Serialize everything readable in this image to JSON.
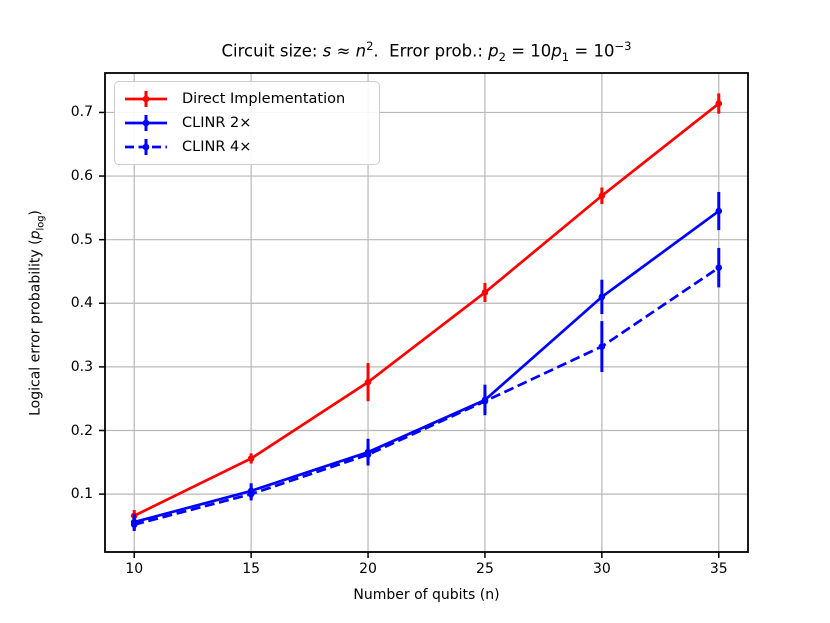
{
  "figure": {
    "title_parts": [
      "Circuit size: ",
      "s",
      " ≈ ",
      "n",
      "2",
      ".  Error prob.: ",
      "p",
      "2",
      " = 10",
      "p",
      "1",
      " = 10",
      "−3"
    ],
    "ylabel_parts": {
      "pre": "Logical error probability (",
      "p": "p",
      "sub": "log",
      "post": ")"
    }
  },
  "chart_data": {
    "type": "line",
    "title": "Circuit size: s ≈ n².  Error prob.: p₂ = 10p₁ = 10⁻³",
    "xlabel": "Number of qubits (n)",
    "ylabel": "Logical error probability (p_log)",
    "x": [
      10,
      15,
      20,
      25,
      30,
      35
    ],
    "xticks": [
      10,
      15,
      20,
      25,
      30,
      35
    ],
    "xtick_labels": [
      "10",
      "15",
      "20",
      "25",
      "30",
      "35"
    ],
    "yticks": [
      0.1,
      0.2,
      0.3,
      0.4,
      0.5,
      0.6,
      0.7
    ],
    "ytick_labels": [
      "0.1",
      "0.2",
      "0.3",
      "0.4",
      "0.5",
      "0.6",
      "0.7"
    ],
    "xlim": [
      8.75,
      36.25
    ],
    "ylim": [
      0.009,
      0.762
    ],
    "grid": true,
    "legend_position": "upper left",
    "grid_color": "#b8b8b8",
    "series": [
      {
        "name": "Direct Implementation",
        "color": "#ff0000",
        "style": "solid",
        "values": [
          0.066,
          0.156,
          0.276,
          0.417,
          0.569,
          0.714
        ],
        "yerr": [
          0.009,
          0.008,
          0.03,
          0.015,
          0.013,
          0.016
        ]
      },
      {
        "name": "CLINR 2×",
        "color": "#0000ff",
        "style": "solid",
        "values": [
          0.056,
          0.105,
          0.166,
          0.248,
          0.41,
          0.545
        ],
        "yerr": [
          0.013,
          0.012,
          0.021,
          0.024,
          0.027,
          0.03
        ]
      },
      {
        "name": "CLINR 4×",
        "color": "#0000ff",
        "style": "dashed",
        "values": [
          0.052,
          0.1,
          0.162,
          0.246,
          0.332,
          0.456
        ],
        "yerr": [
          0.01,
          0.01,
          0.014,
          0.015,
          0.04,
          0.031
        ]
      }
    ]
  }
}
